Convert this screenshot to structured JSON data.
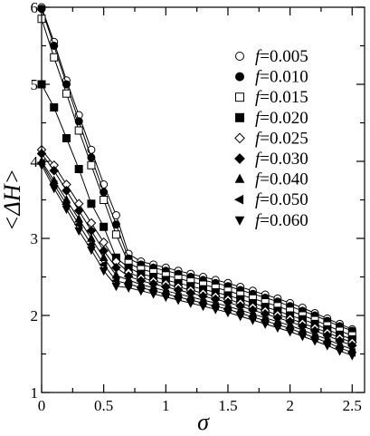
{
  "chart_data": {
    "type": "line",
    "xlabel": "σ",
    "ylabel": "<ΔH>",
    "xlim": [
      0,
      2.6
    ],
    "ylim": [
      1,
      6
    ],
    "x_ticks": [
      0,
      0.5,
      1,
      1.5,
      2,
      2.5
    ],
    "x_tick_labels": [
      "0",
      "0.5",
      "1",
      "1.5",
      "2",
      "2.5"
    ],
    "y_ticks": [
      1,
      2,
      3,
      4,
      5,
      6
    ],
    "y_tick_labels": [
      "1",
      "2",
      "3",
      "4",
      "5",
      "6"
    ],
    "grid": false,
    "legend_position": "top-right",
    "x": [
      0,
      0.1,
      0.2,
      0.3,
      0.4,
      0.5,
      0.6,
      0.7,
      0.8,
      0.9,
      1.0,
      1.1,
      1.2,
      1.3,
      1.4,
      1.5,
      1.6,
      1.7,
      1.8,
      1.9,
      2.0,
      2.1,
      2.2,
      2.3,
      2.4,
      2.5
    ],
    "series": [
      {
        "name": "f=0.005",
        "marker": "circle-open",
        "values": [
          6.0,
          5.55,
          5.05,
          4.6,
          4.15,
          3.7,
          3.3,
          2.8,
          2.7,
          2.66,
          2.62,
          2.58,
          2.54,
          2.5,
          2.46,
          2.42,
          2.37,
          2.32,
          2.27,
          2.22,
          2.16,
          2.1,
          2.03,
          1.96,
          1.89,
          1.82
        ]
      },
      {
        "name": "f=0.010",
        "marker": "circle-filled",
        "values": [
          5.98,
          5.5,
          5.0,
          4.52,
          4.05,
          3.6,
          3.18,
          2.74,
          2.66,
          2.62,
          2.58,
          2.54,
          2.5,
          2.46,
          2.42,
          2.38,
          2.33,
          2.28,
          2.23,
          2.18,
          2.12,
          2.06,
          2.0,
          1.93,
          1.86,
          1.8
        ]
      },
      {
        "name": "f=0.015",
        "marker": "square-open",
        "values": [
          5.85,
          5.35,
          4.88,
          4.4,
          3.95,
          3.5,
          3.05,
          2.68,
          2.6,
          2.56,
          2.52,
          2.48,
          2.44,
          2.4,
          2.36,
          2.32,
          2.27,
          2.22,
          2.17,
          2.12,
          2.06,
          2.0,
          1.94,
          1.87,
          1.8,
          1.74
        ]
      },
      {
        "name": "f=0.020",
        "marker": "square-filled",
        "values": [
          5.0,
          4.7,
          4.3,
          3.9,
          3.45,
          3.15,
          2.75,
          2.62,
          2.54,
          2.5,
          2.46,
          2.42,
          2.38,
          2.34,
          2.3,
          2.26,
          2.21,
          2.16,
          2.11,
          2.06,
          2.0,
          1.95,
          1.89,
          1.82,
          1.75,
          1.69
        ]
      },
      {
        "name": "f=0.025",
        "marker": "diamond-open",
        "values": [
          4.15,
          3.95,
          3.7,
          3.45,
          3.2,
          2.95,
          2.7,
          2.56,
          2.49,
          2.45,
          2.41,
          2.37,
          2.33,
          2.29,
          2.25,
          2.21,
          2.16,
          2.11,
          2.06,
          2.01,
          1.96,
          1.9,
          1.84,
          1.78,
          1.71,
          1.65
        ]
      },
      {
        "name": "f=0.030",
        "marker": "diamond-filled",
        "values": [
          4.1,
          3.88,
          3.62,
          3.36,
          3.1,
          2.84,
          2.62,
          2.51,
          2.45,
          2.41,
          2.37,
          2.33,
          2.29,
          2.25,
          2.21,
          2.17,
          2.12,
          2.07,
          2.02,
          1.97,
          1.92,
          1.86,
          1.8,
          1.74,
          1.67,
          1.61
        ]
      },
      {
        "name": "f=0.040",
        "marker": "triangle-up-filled",
        "values": [
          4.0,
          3.75,
          3.5,
          3.25,
          3.0,
          2.75,
          2.52,
          2.46,
          2.4,
          2.36,
          2.32,
          2.28,
          2.24,
          2.2,
          2.16,
          2.12,
          2.07,
          2.02,
          1.97,
          1.92,
          1.87,
          1.81,
          1.75,
          1.69,
          1.62,
          1.56
        ]
      },
      {
        "name": "f=0.050",
        "marker": "triangle-left-filled",
        "values": [
          3.98,
          3.7,
          3.44,
          3.18,
          2.92,
          2.66,
          2.45,
          2.41,
          2.36,
          2.32,
          2.28,
          2.24,
          2.2,
          2.16,
          2.12,
          2.08,
          2.03,
          1.98,
          1.93,
          1.88,
          1.83,
          1.77,
          1.71,
          1.65,
          1.58,
          1.52
        ]
      },
      {
        "name": "f=0.060",
        "marker": "triangle-down-filled",
        "values": [
          3.95,
          3.65,
          3.38,
          3.1,
          2.85,
          2.58,
          2.38,
          2.36,
          2.32,
          2.28,
          2.24,
          2.2,
          2.16,
          2.12,
          2.08,
          2.04,
          1.99,
          1.94,
          1.89,
          1.84,
          1.79,
          1.73,
          1.67,
          1.61,
          1.54,
          1.48
        ]
      }
    ]
  }
}
